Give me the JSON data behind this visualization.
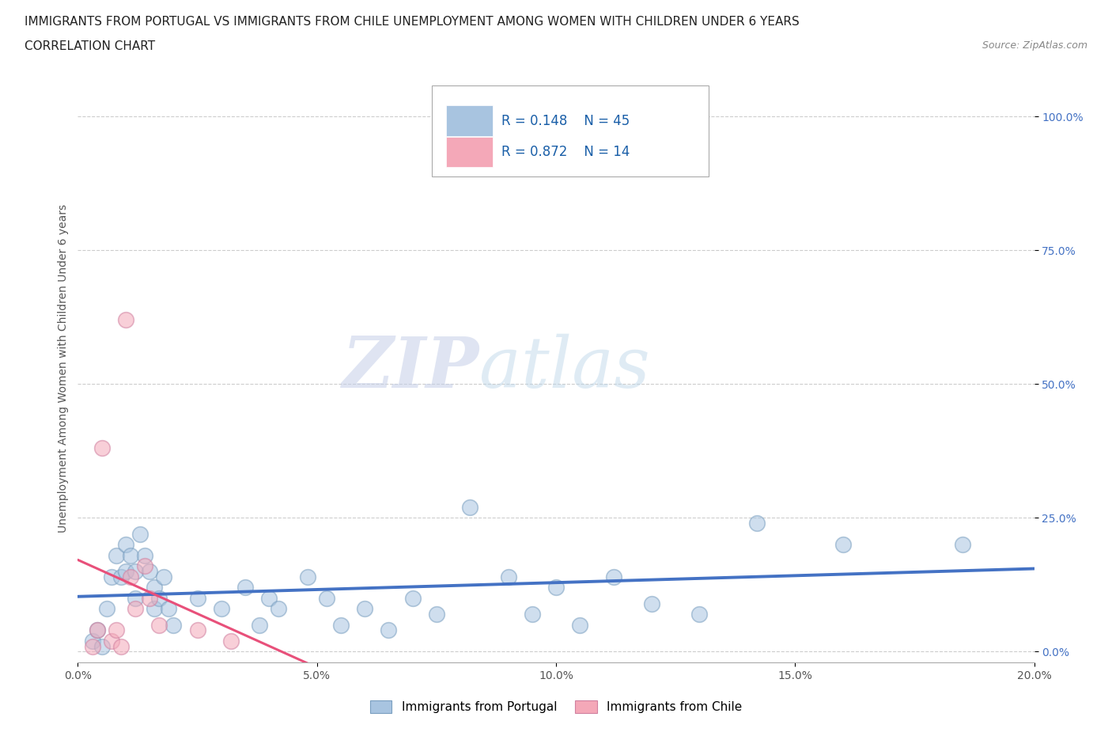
{
  "title_line1": "IMMIGRANTS FROM PORTUGAL VS IMMIGRANTS FROM CHILE UNEMPLOYMENT AMONG WOMEN WITH CHILDREN UNDER 6 YEARS",
  "title_line2": "CORRELATION CHART",
  "source": "Source: ZipAtlas.com",
  "ylabel": "Unemployment Among Women with Children Under 6 years",
  "xlim": [
    0.0,
    0.2
  ],
  "ylim": [
    -0.02,
    1.08
  ],
  "xticks": [
    0.0,
    0.05,
    0.1,
    0.15,
    0.2
  ],
  "xticklabels": [
    "0.0%",
    "5.0%",
    "10.0%",
    "15.0%",
    "20.0%"
  ],
  "yticks": [
    0.0,
    0.25,
    0.5,
    0.75,
    1.0
  ],
  "yticklabels": [
    "0.0%",
    "25.0%",
    "50.0%",
    "75.0%",
    "100.0%"
  ],
  "portugal_color": "#a8c4e0",
  "chile_color": "#f4a8b8",
  "portugal_line_color": "#4472c4",
  "chile_line_color": "#e8507a",
  "portugal_R": 0.148,
  "portugal_N": 45,
  "chile_R": 0.872,
  "chile_N": 14,
  "watermark_zip": "ZIP",
  "watermark_atlas": "atlas",
  "legend_label_portugal": "Immigrants from Portugal",
  "legend_label_chile": "Immigrants from Chile",
  "portugal_scatter": [
    [
      0.003,
      0.02
    ],
    [
      0.004,
      0.04
    ],
    [
      0.005,
      0.01
    ],
    [
      0.006,
      0.08
    ],
    [
      0.007,
      0.14
    ],
    [
      0.008,
      0.18
    ],
    [
      0.009,
      0.14
    ],
    [
      0.01,
      0.2
    ],
    [
      0.01,
      0.15
    ],
    [
      0.011,
      0.18
    ],
    [
      0.012,
      0.15
    ],
    [
      0.012,
      0.1
    ],
    [
      0.013,
      0.22
    ],
    [
      0.014,
      0.18
    ],
    [
      0.015,
      0.15
    ],
    [
      0.016,
      0.12
    ],
    [
      0.016,
      0.08
    ],
    [
      0.017,
      0.1
    ],
    [
      0.018,
      0.14
    ],
    [
      0.019,
      0.08
    ],
    [
      0.02,
      0.05
    ],
    [
      0.025,
      0.1
    ],
    [
      0.03,
      0.08
    ],
    [
      0.035,
      0.12
    ],
    [
      0.038,
      0.05
    ],
    [
      0.04,
      0.1
    ],
    [
      0.042,
      0.08
    ],
    [
      0.048,
      0.14
    ],
    [
      0.052,
      0.1
    ],
    [
      0.055,
      0.05
    ],
    [
      0.06,
      0.08
    ],
    [
      0.065,
      0.04
    ],
    [
      0.07,
      0.1
    ],
    [
      0.075,
      0.07
    ],
    [
      0.082,
      0.27
    ],
    [
      0.09,
      0.14
    ],
    [
      0.095,
      0.07
    ],
    [
      0.1,
      0.12
    ],
    [
      0.105,
      0.05
    ],
    [
      0.112,
      0.14
    ],
    [
      0.12,
      0.09
    ],
    [
      0.13,
      0.07
    ],
    [
      0.142,
      0.24
    ],
    [
      0.16,
      0.2
    ],
    [
      0.185,
      0.2
    ]
  ],
  "chile_scatter": [
    [
      0.003,
      0.01
    ],
    [
      0.004,
      0.04
    ],
    [
      0.005,
      0.38
    ],
    [
      0.007,
      0.02
    ],
    [
      0.008,
      0.04
    ],
    [
      0.009,
      0.01
    ],
    [
      0.01,
      0.62
    ],
    [
      0.011,
      0.14
    ],
    [
      0.012,
      0.08
    ],
    [
      0.014,
      0.16
    ],
    [
      0.015,
      0.1
    ],
    [
      0.017,
      0.05
    ],
    [
      0.025,
      0.04
    ],
    [
      0.032,
      0.02
    ]
  ],
  "background_color": "#ffffff",
  "grid_color": "#c8c8c8",
  "title_fontsize": 11,
  "axis_label_fontsize": 10,
  "tick_fontsize": 10,
  "legend_R_color": "#1a5fa8"
}
